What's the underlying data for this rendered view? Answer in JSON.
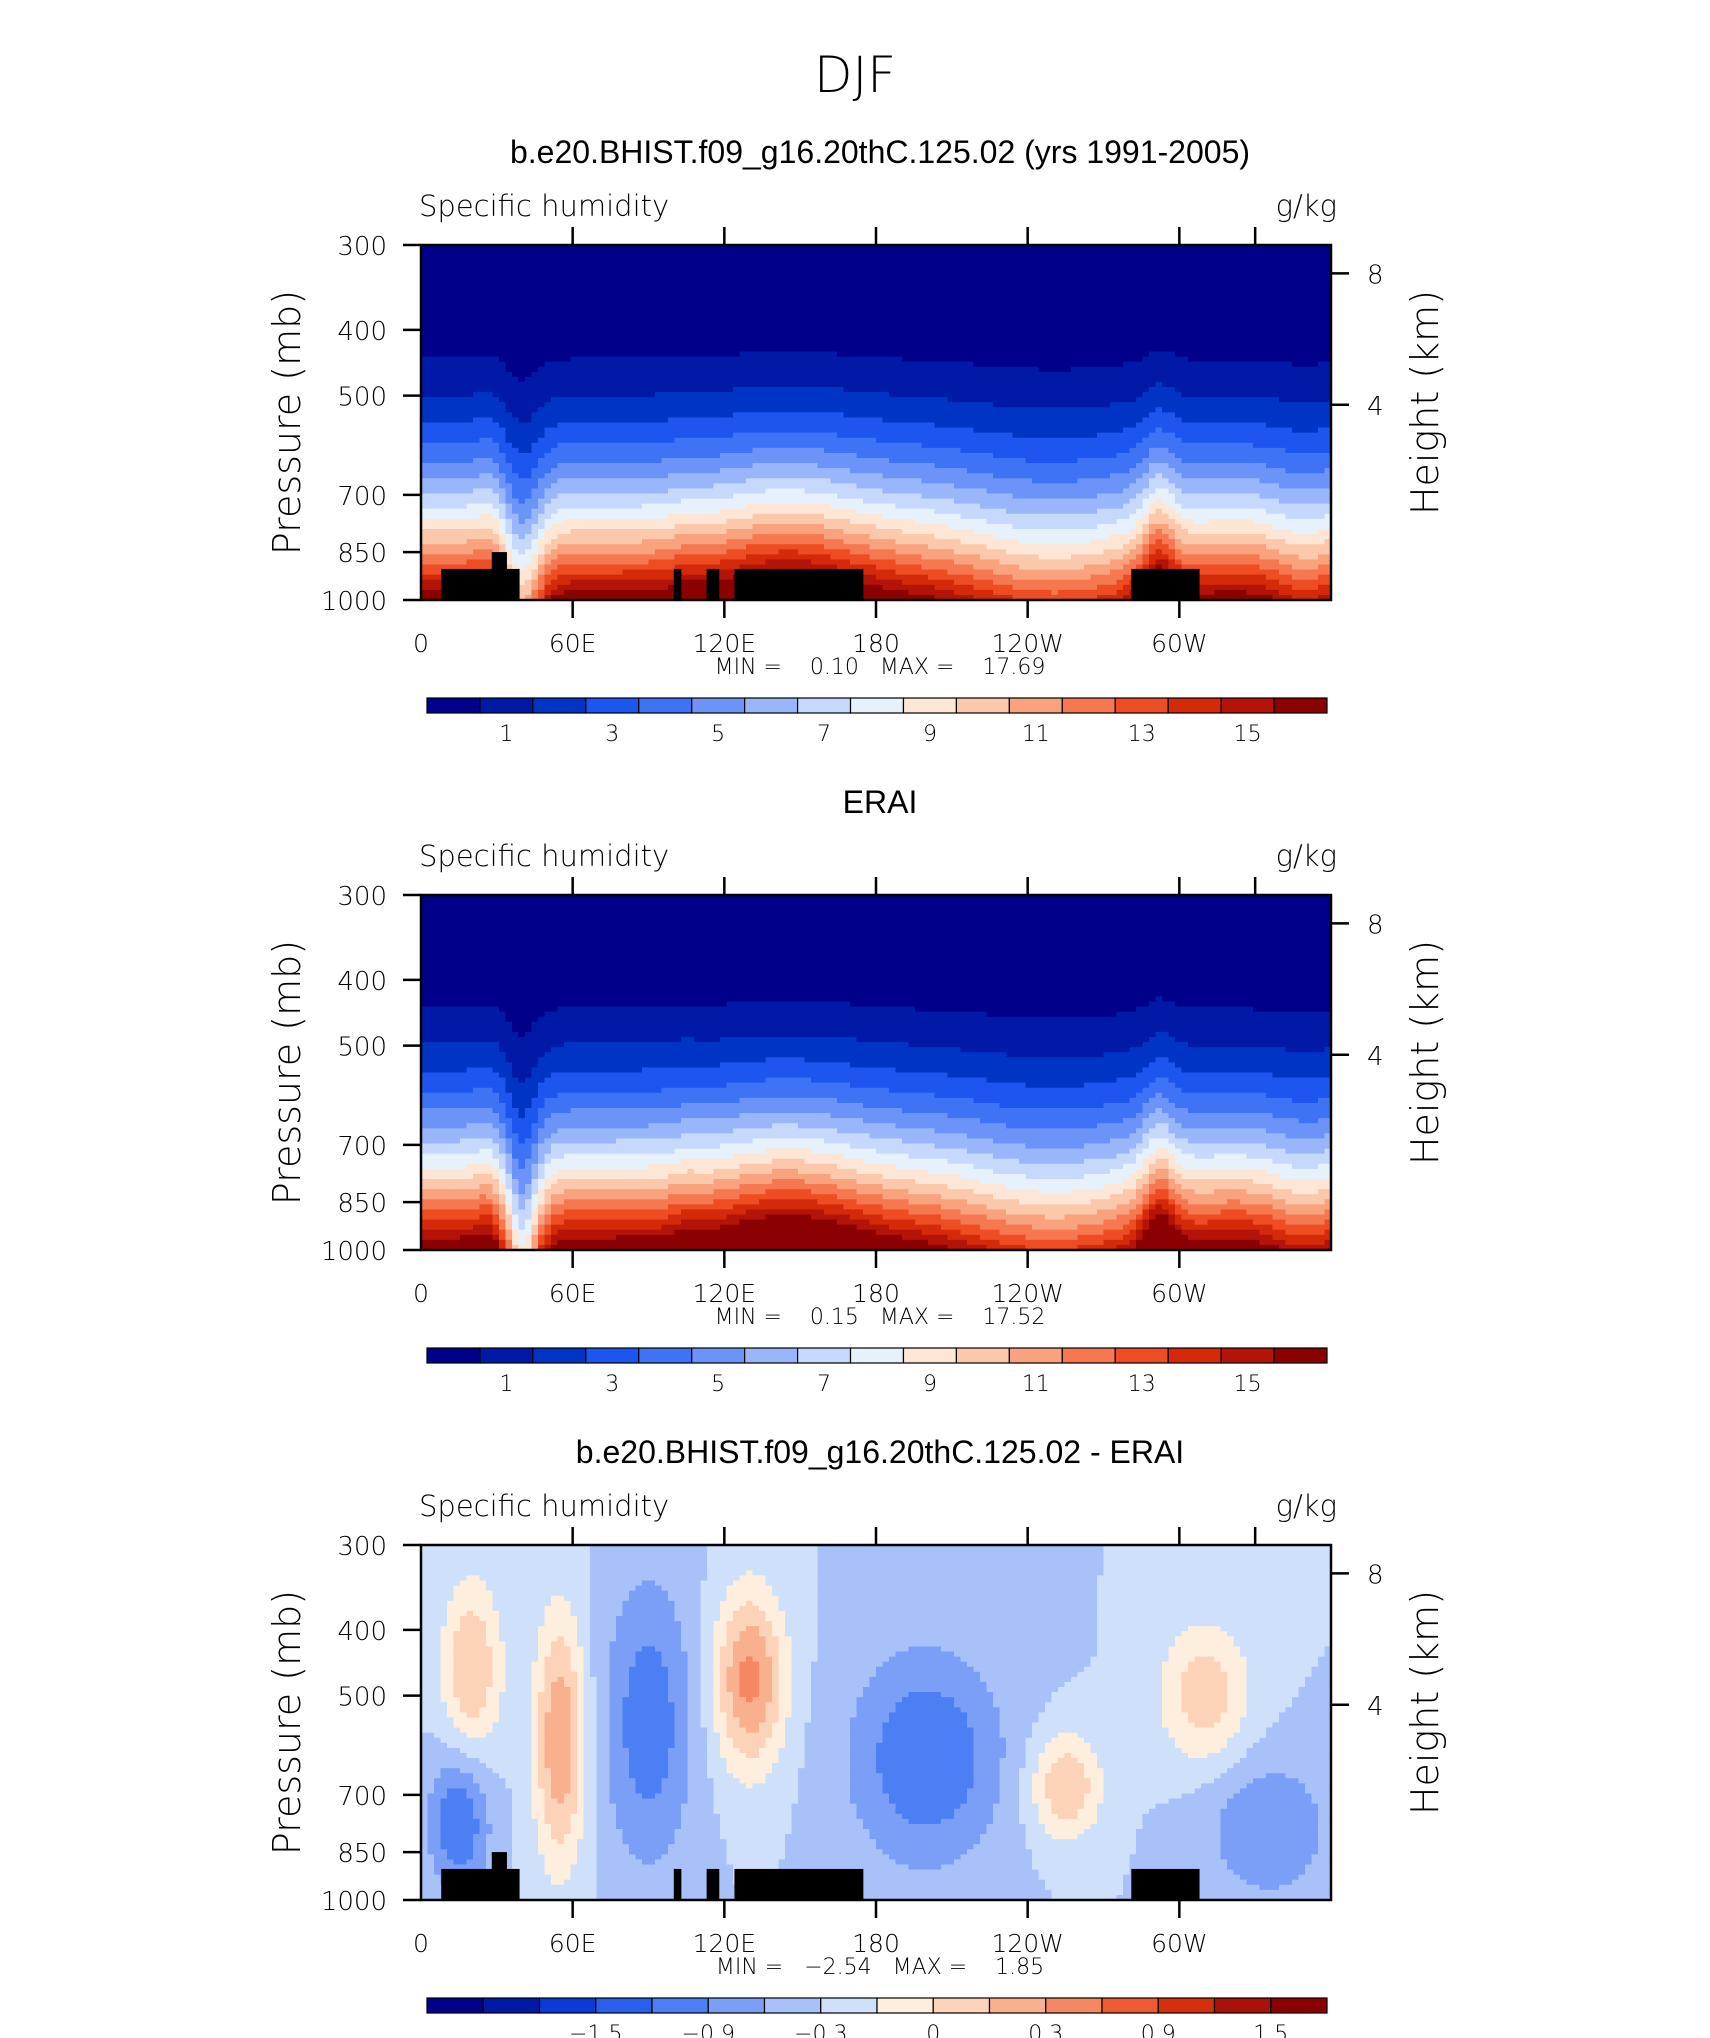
{
  "page_title": "DJF",
  "colors": {
    "seq": [
      "#00008b",
      "#0019a6",
      "#0034c4",
      "#1d55ef",
      "#3e73f5",
      "#6c94f8",
      "#9ab6fb",
      "#c6d8fb",
      "#e7f1fb",
      "#fde6d6",
      "#fbc8ac",
      "#f8a27e",
      "#f67850",
      "#ee4d24",
      "#d42a0a",
      "#b41408",
      "#8b0000"
    ],
    "diff": [
      "#00008b",
      "#0019a6",
      "#0a3bd6",
      "#2a5fee",
      "#4c7ff3",
      "#7b9ff6",
      "#a8c1f9",
      "#cfe0fb",
      "#fdeede",
      "#fcd3b8",
      "#f8b08f",
      "#f58862",
      "#ee5a32",
      "#d4300e",
      "#a81208",
      "#8b0000"
    ],
    "land": "#000000"
  },
  "chart_data": [
    {
      "type": "contour",
      "title": "b.e20.BHIST.f09_g16.20thC.125.02 (yrs 1991-2005)",
      "left_label": "Specific humidity",
      "right_label": "g/kg",
      "ylabel": "Pressure (mb)",
      "y2label": "Height (km)",
      "yticks": [
        "300",
        "400",
        "500",
        "700",
        "850",
        "1000"
      ],
      "y2ticks": [
        "8",
        "4"
      ],
      "xticks": [
        "0",
        "60E",
        "120E",
        "180",
        "120W",
        "60W"
      ],
      "stats": "MIN =    0.10   MAX =    17.69",
      "colorbar_labels": [
        "1",
        "3",
        "5",
        "7",
        "9",
        "11",
        "13",
        "15"
      ],
      "field": "model",
      "land_mask": true
    },
    {
      "type": "contour",
      "title": "ERAI",
      "left_label": "Specific humidity",
      "right_label": "g/kg",
      "ylabel": "Pressure (mb)",
      "y2label": "Height (km)",
      "yticks": [
        "300",
        "400",
        "500",
        "700",
        "850",
        "1000"
      ],
      "y2ticks": [
        "8",
        "4"
      ],
      "xticks": [
        "0",
        "60E",
        "120E",
        "180",
        "120W",
        "60W"
      ],
      "stats": "MIN =    0.15   MAX =    17.52",
      "colorbar_labels": [
        "1",
        "3",
        "5",
        "7",
        "9",
        "11",
        "13",
        "15"
      ],
      "field": "obs",
      "land_mask": false
    },
    {
      "type": "contour",
      "title": "b.e20.BHIST.f09_g16.20thC.125.02 - ERAI",
      "left_label": "Specific humidity",
      "right_label": "g/kg",
      "ylabel": "Pressure (mb)",
      "y2label": "Height (km)",
      "yticks": [
        "300",
        "400",
        "500",
        "700",
        "850",
        "1000"
      ],
      "y2ticks": [
        "8",
        "4"
      ],
      "xticks": [
        "0",
        "60E",
        "120E",
        "180",
        "120W",
        "60W"
      ],
      "stats": "MIN =   −2.54   MAX =    1.85",
      "colorbar_labels": [
        "−1.5",
        "−0.9",
        "−0.3",
        "0",
        "0.3",
        "0.9",
        "1.5"
      ],
      "field": "diff",
      "land_mask": true
    }
  ]
}
